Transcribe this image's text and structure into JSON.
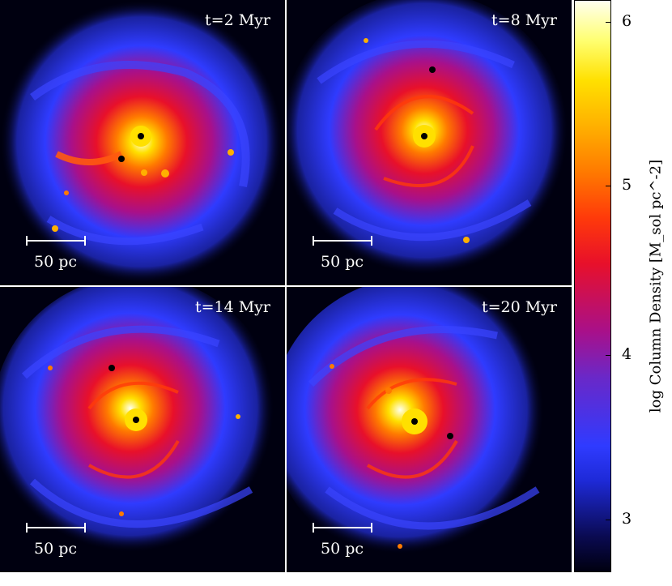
{
  "panels": [
    {
      "time_label": "t=2 Myr",
      "scale_label": "50 pc"
    },
    {
      "time_label": "t=8 Myr",
      "scale_label": "50 pc"
    },
    {
      "time_label": "t=14 Myr",
      "scale_label": "50 pc"
    },
    {
      "time_label": "t=20 Myr",
      "scale_label": "50 pc"
    }
  ],
  "colorbar": {
    "label": "log Column Density [M_sol pc^-2]",
    "ticks": [
      "6",
      "5",
      "4",
      "3"
    ],
    "range": [
      2.7,
      6.1
    ]
  },
  "colors": {
    "background": "#000010",
    "low": "#1e2ad8",
    "mid": "#e8102a",
    "high": "#ffff70",
    "core": "#ffffee"
  }
}
